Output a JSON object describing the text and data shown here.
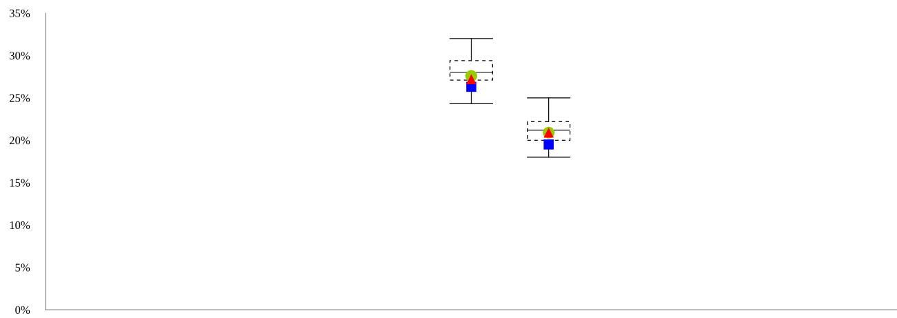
{
  "chart_data": {
    "type": "box",
    "categories": [
      null,
      null,
      null,
      null,
      null,
      null,
      null,
      null,
      null,
      null,
      null
    ],
    "boxes": [
      null,
      null,
      null,
      null,
      null,
      {
        "low": 24.3,
        "q1": 27.1,
        "median": 28.0,
        "q3": 29.4,
        "high": 32.0
      },
      {
        "low": 18.0,
        "q1": 20.0,
        "median": 21.2,
        "q3": 22.2,
        "high": 25.0
      },
      null,
      null,
      null,
      null
    ],
    "series": [
      {
        "type": "scatter",
        "marker": "square",
        "color": "#0000ff",
        "values": [
          null,
          null,
          null,
          null,
          null,
          26.3,
          19.5,
          null,
          null,
          null,
          null
        ]
      },
      {
        "type": "scatter",
        "marker": "circle",
        "color": "#99cc00",
        "values": [
          null,
          null,
          null,
          null,
          null,
          27.6,
          20.9,
          null,
          null,
          null,
          null
        ]
      },
      {
        "type": "scatter",
        "marker": "triangle",
        "color": "#ff0000",
        "values": [
          null,
          null,
          null,
          null,
          null,
          27.2,
          20.9,
          null,
          null,
          null,
          null
        ]
      }
    ],
    "ylim": [
      0,
      35
    ],
    "yticks": [
      {
        "value": 0,
        "label": "0%"
      },
      {
        "value": 5,
        "label": "5%"
      },
      {
        "value": 10,
        "label": "10%"
      },
      {
        "value": 15,
        "label": "15%"
      },
      {
        "value": 20,
        "label": "20%"
      },
      {
        "value": 25,
        "label": "25%"
      },
      {
        "value": 30,
        "label": "30%"
      },
      {
        "value": 35,
        "label": "35%"
      }
    ],
    "grid": false,
    "legend": false
  }
}
